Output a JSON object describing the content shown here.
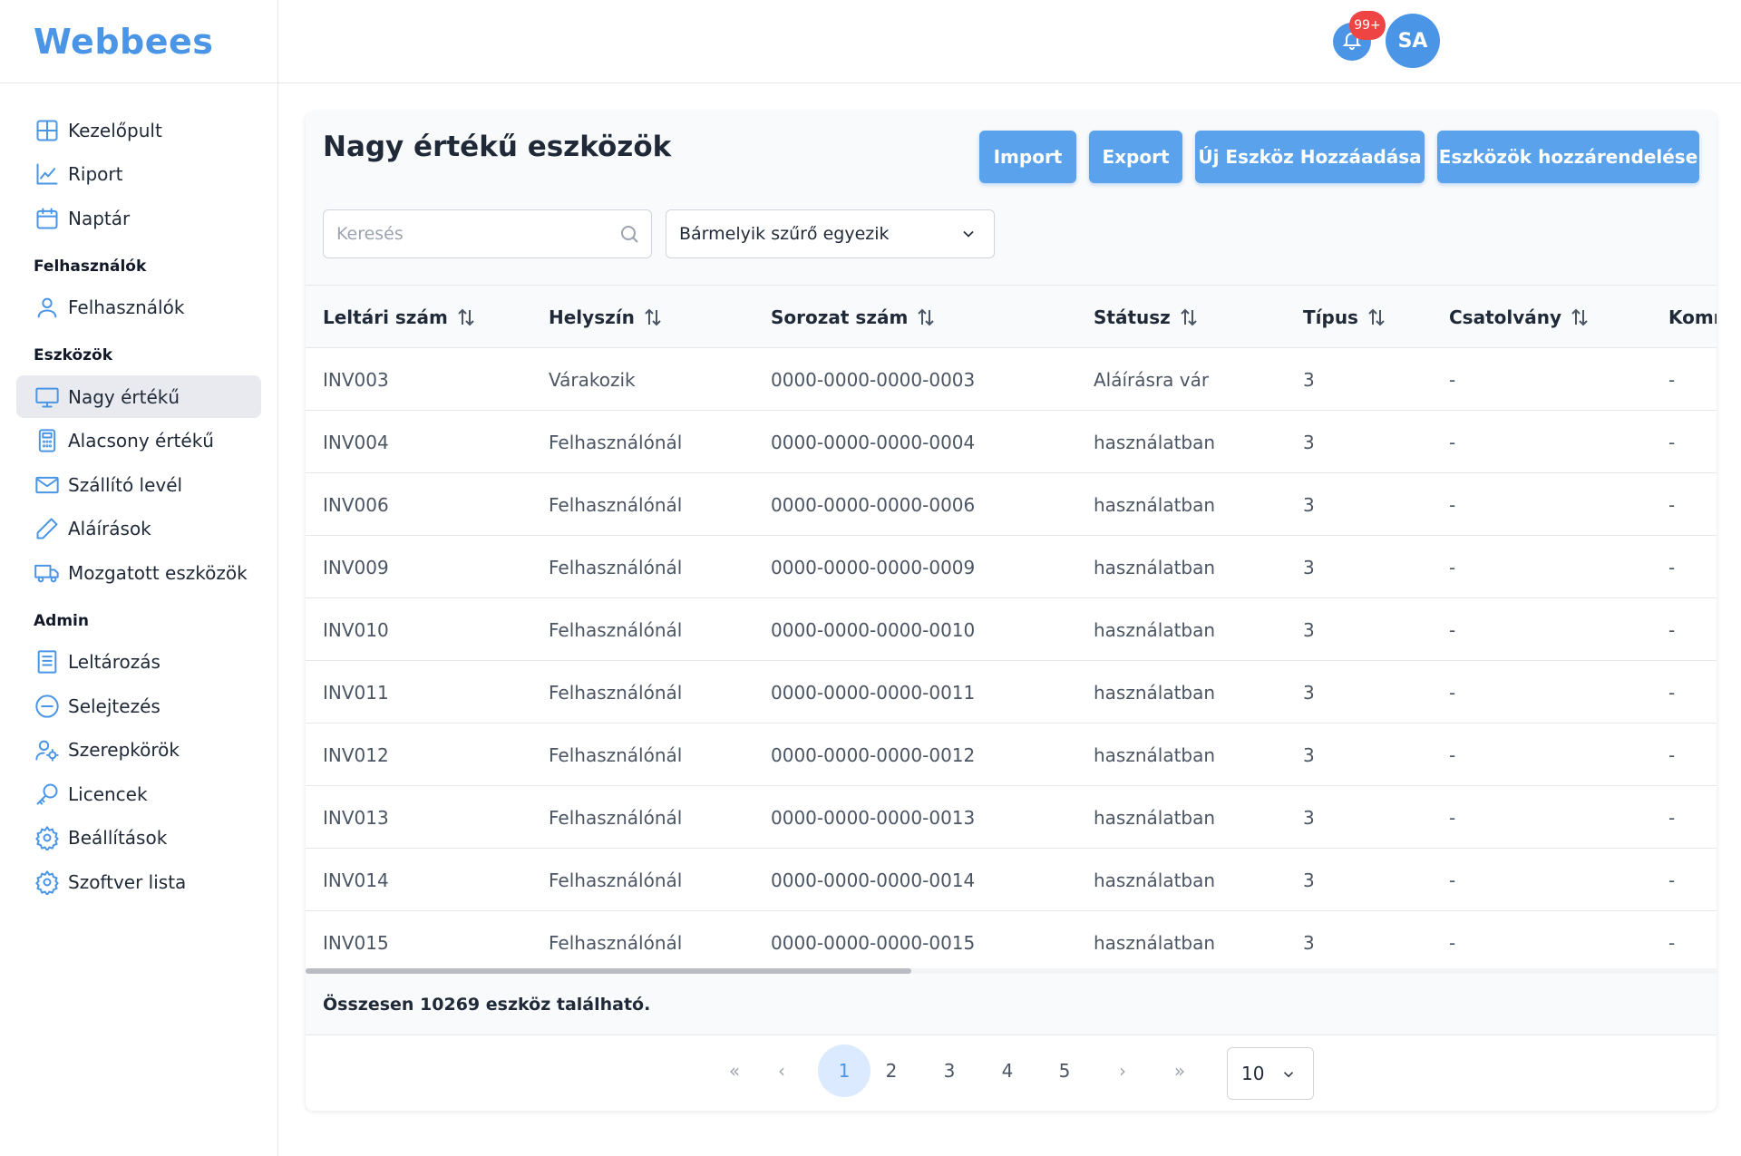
{
  "app": {
    "logo": "Webbees"
  },
  "header": {
    "notification_badge": "99+",
    "avatar_initials": "SA"
  },
  "sidebar": {
    "items": [
      {
        "label": "Kezelőpult",
        "icon": "dashboard-icon"
      },
      {
        "label": "Riport",
        "icon": "chart-icon"
      },
      {
        "label": "Naptár",
        "icon": "calendar-icon"
      }
    ],
    "section_users": "Felhasználók",
    "users_items": [
      {
        "label": "Felhasználók",
        "icon": "user-icon"
      }
    ],
    "section_assets": "Eszközök",
    "assets_items": [
      {
        "label": "Nagy értékű",
        "icon": "monitor-icon",
        "active": true
      },
      {
        "label": "Alacsony értékű",
        "icon": "calculator-icon"
      },
      {
        "label": "Szállító levél",
        "icon": "mail-icon"
      },
      {
        "label": "Aláírások",
        "icon": "pen-icon"
      },
      {
        "label": "Mozgatott eszközök",
        "icon": "truck-icon"
      }
    ],
    "section_admin": "Admin",
    "admin_items": [
      {
        "label": "Leltározás",
        "icon": "list-icon"
      },
      {
        "label": "Selejtezés",
        "icon": "minus-circle-icon"
      },
      {
        "label": "Szerepkörök",
        "icon": "user-gear-icon"
      },
      {
        "label": "Licencek",
        "icon": "key-icon"
      },
      {
        "label": "Beállítások",
        "icon": "settings-icon"
      },
      {
        "label": "Szoftver lista",
        "icon": "settings-icon"
      }
    ]
  },
  "main": {
    "title": "Nagy értékű eszközök",
    "buttons": {
      "import": "Import",
      "export": "Export",
      "add": "Új Eszköz Hozzáadása",
      "assign": "Eszközök hozzárendelése"
    },
    "search": {
      "placeholder": "Keresés"
    },
    "filter": {
      "value": "Bármelyik szűrő egyezik"
    },
    "table": {
      "columns": [
        "Leltári szám",
        "Helyszín",
        "Sorozat szám",
        "Státusz",
        "Típus",
        "Csatolvány",
        "Komr"
      ],
      "rows": [
        [
          "INV003",
          "Várakozik",
          "0000-0000-0000-0003",
          "Aláírásra vár",
          "3",
          "-",
          "-"
        ],
        [
          "INV004",
          "Felhasználónál",
          "0000-0000-0000-0004",
          "használatban",
          "3",
          "-",
          "-"
        ],
        [
          "INV006",
          "Felhasználónál",
          "0000-0000-0000-0006",
          "használatban",
          "3",
          "-",
          "-"
        ],
        [
          "INV009",
          "Felhasználónál",
          "0000-0000-0000-0009",
          "használatban",
          "3",
          "-",
          "-"
        ],
        [
          "INV010",
          "Felhasználónál",
          "0000-0000-0000-0010",
          "használatban",
          "3",
          "-",
          "-"
        ],
        [
          "INV011",
          "Felhasználónál",
          "0000-0000-0000-0011",
          "használatban",
          "3",
          "-",
          "-"
        ],
        [
          "INV012",
          "Felhasználónál",
          "0000-0000-0000-0012",
          "használatban",
          "3",
          "-",
          "-"
        ],
        [
          "INV013",
          "Felhasználónál",
          "0000-0000-0000-0013",
          "használatban",
          "3",
          "-",
          "-"
        ],
        [
          "INV014",
          "Felhasználónál",
          "0000-0000-0000-0014",
          "használatban",
          "3",
          "-",
          "-"
        ],
        [
          "INV015",
          "Felhasználónál",
          "0000-0000-0000-0015",
          "használatban",
          "3",
          "-",
          "-"
        ]
      ],
      "total": "Összesen 10269 eszköz található."
    },
    "pagination": {
      "first": "«",
      "prev": "‹",
      "pages": [
        "1",
        "2",
        "3",
        "4",
        "5"
      ],
      "current": "1",
      "next": "›",
      "last": "»",
      "rows_per_page": "10"
    }
  },
  "colors": {
    "accent": "#4a95e6",
    "button": "#5aa2ec",
    "badge": "#ef4444"
  }
}
